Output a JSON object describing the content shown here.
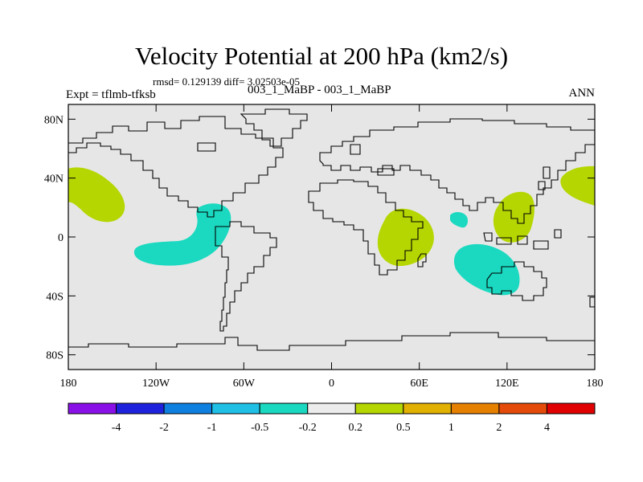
{
  "title": "Velocity Potential at 200 hPa (km2/s)",
  "stats": "rmsd= 0.129139 diff= 3.02503e-05",
  "left_label": "Expt = tflmb-tfksb",
  "center_label": "003_1_MaBP - 003_1_MaBP",
  "right_label": "ANN",
  "map": {
    "lon_range": [
      -180,
      180
    ],
    "lat_range": [
      -90,
      90
    ],
    "lon_ticks": [
      {
        "value": -180,
        "label": "180"
      },
      {
        "value": -120,
        "label": "120W"
      },
      {
        "value": -60,
        "label": "60W"
      },
      {
        "value": 0,
        "label": "0"
      },
      {
        "value": 60,
        "label": "60E"
      },
      {
        "value": 120,
        "label": "120E"
      },
      {
        "value": 180,
        "label": "180"
      }
    ],
    "lat_ticks": [
      {
        "value": 80,
        "label": "80N"
      },
      {
        "value": 40,
        "label": "40N"
      },
      {
        "value": 0,
        "label": "0"
      },
      {
        "value": -40,
        "label": "40S"
      },
      {
        "value": -80,
        "label": "80S"
      }
    ],
    "background_color": "#e6e6e6",
    "anomaly_regions": [
      {
        "name": "north-pacific-west",
        "sign": "positive",
        "color": "#b5d600",
        "approx_center": [
          -165,
          30
        ]
      },
      {
        "name": "north-pacific-east",
        "sign": "positive",
        "color": "#b5d600",
        "approx_center": [
          172,
          35
        ]
      },
      {
        "name": "east-pacific",
        "sign": "negative",
        "color": "#1ad9c0",
        "approx_center": [
          -95,
          -10
        ]
      },
      {
        "name": "africa",
        "sign": "positive",
        "color": "#b5d600",
        "approx_center": [
          40,
          -2
        ]
      },
      {
        "name": "india",
        "sign": "negative",
        "color": "#1ad9c0",
        "approx_center": [
          88,
          10
        ]
      },
      {
        "name": "maritime-continent",
        "sign": "positive",
        "color": "#b5d600",
        "approx_center": [
          126,
          15
        ]
      },
      {
        "name": "australia-indian-ocean",
        "sign": "negative",
        "color": "#1ad9c0",
        "approx_center": [
          105,
          -22
        ]
      }
    ]
  },
  "colorbar": {
    "colors": [
      "#8b10e8",
      "#1f22dd",
      "#0f7fe0",
      "#1fbfe6",
      "#1ad9c0",
      "#ececec",
      "#b5d600",
      "#e1b000",
      "#e68000",
      "#e44b0a",
      "#e00000"
    ],
    "labels": [
      "-4",
      "-2",
      "-1",
      "-0.5",
      "-0.2",
      "0.2",
      "0.5",
      "1",
      "2",
      "4"
    ]
  }
}
